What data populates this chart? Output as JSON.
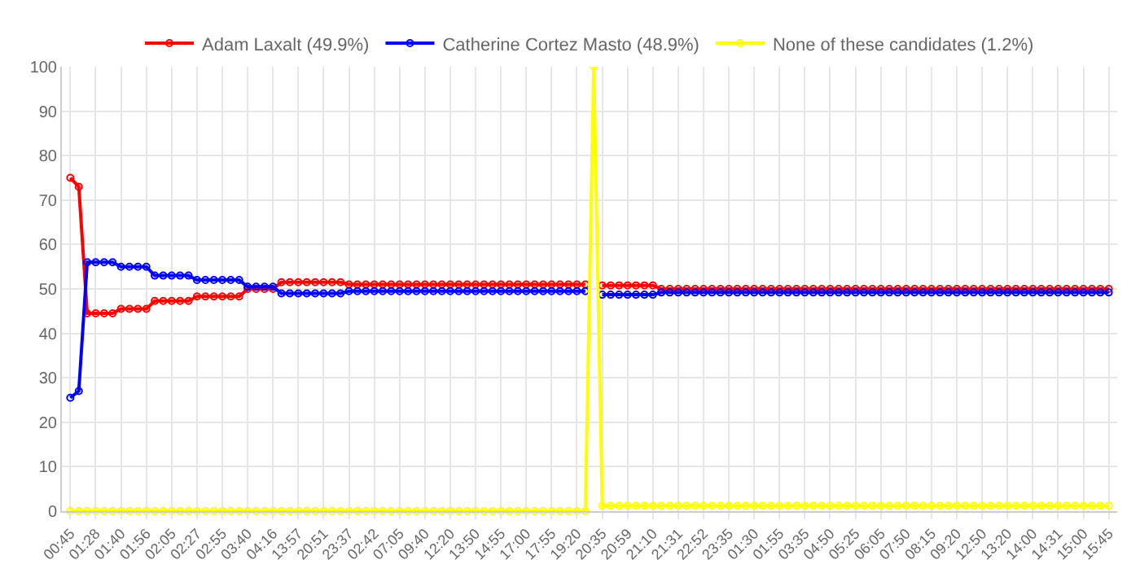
{
  "chart_data": {
    "type": "line",
    "categories": [
      "00:45",
      null,
      null,
      "01:28",
      null,
      null,
      "01:40",
      null,
      null,
      "01:56",
      null,
      null,
      "02:05",
      null,
      null,
      "02:27",
      null,
      null,
      "02:55",
      null,
      null,
      "03:40",
      null,
      null,
      "04:16",
      null,
      null,
      "13:57",
      null,
      null,
      "20:51",
      null,
      null,
      "23:37",
      null,
      null,
      "02:42",
      null,
      null,
      "07:05",
      null,
      null,
      "09:40",
      null,
      null,
      "12:20",
      null,
      null,
      "13:50",
      null,
      null,
      "14:55",
      null,
      null,
      "17:00",
      null,
      null,
      "17:55",
      null,
      null,
      "19:20",
      null,
      null,
      "20:35",
      null,
      null,
      "20:59",
      null,
      null,
      "21:10",
      null,
      null,
      "21:31",
      null,
      null,
      "22:52",
      null,
      null,
      "23:35",
      null,
      null,
      "01:30",
      null,
      null,
      "01:55",
      null,
      null,
      "03:35",
      null,
      null,
      "04:50",
      null,
      null,
      "05:25",
      null,
      null,
      "06:05",
      null,
      null,
      "07:50",
      null,
      null,
      "08:15",
      null,
      null,
      "09:20",
      null,
      null,
      "12:50",
      null,
      null,
      "13:20",
      null,
      null,
      "14:00",
      null,
      null,
      "14:31",
      null,
      null,
      "15:00",
      null,
      null,
      "15:45"
    ],
    "series": [
      {
        "name": "Adam Laxalt (49.9%)",
        "color": "#ff0000",
        "values": [
          75,
          73,
          44.5,
          44.5,
          44.5,
          44.5,
          45.5,
          45.5,
          45.5,
          45.5,
          47.3,
          47.3,
          47.3,
          47.3,
          47.3,
          48.3,
          48.3,
          48.3,
          48.3,
          48.3,
          48.3,
          50,
          50,
          50,
          50,
          51.5,
          51.5,
          51.5,
          51.5,
          51.5,
          51.5,
          51.5,
          51.5,
          51,
          51,
          51,
          51,
          51,
          51,
          51,
          51,
          51,
          51,
          51,
          51,
          51,
          51,
          51,
          51,
          51,
          51,
          51,
          51,
          51,
          51,
          51,
          51,
          51,
          51,
          51,
          51,
          51,
          null,
          50.8,
          50.8,
          50.8,
          50.8,
          50.8,
          50.8,
          50.8,
          50,
          50,
          50,
          50,
          50,
          50,
          50,
          50,
          50,
          50,
          50,
          50,
          50,
          50,
          50,
          50,
          50,
          50,
          50,
          50,
          50,
          50,
          50,
          50,
          50,
          50,
          50,
          50,
          50,
          50,
          50,
          50,
          50,
          50,
          50,
          50,
          50,
          50,
          50,
          50,
          50,
          50,
          50,
          50,
          50,
          50,
          50,
          50,
          50,
          50,
          50,
          50,
          50,
          50
        ]
      },
      {
        "name": "Catherine Cortez Masto (48.9%)",
        "color": "#0000ff",
        "values": [
          25.5,
          27,
          56,
          56,
          56,
          56,
          55,
          55,
          55,
          55,
          53,
          53,
          53,
          53,
          53,
          52,
          52,
          52,
          52,
          52,
          52,
          50.5,
          50.5,
          50.5,
          50.5,
          49,
          49,
          49,
          49,
          49,
          49,
          49,
          49,
          49.5,
          49.5,
          49.5,
          49.5,
          49.5,
          49.5,
          49.5,
          49.5,
          49.5,
          49.5,
          49.5,
          49.5,
          49.5,
          49.5,
          49.5,
          49.5,
          49.5,
          49.5,
          49.5,
          49.5,
          49.5,
          49.5,
          49.5,
          49.5,
          49.5,
          49.5,
          49.5,
          49.5,
          49.5,
          null,
          48.7,
          48.7,
          48.7,
          48.7,
          48.7,
          48.7,
          48.7,
          49.2,
          49.2,
          49.2,
          49.2,
          49.2,
          49.2,
          49.2,
          49.2,
          49.2,
          49.2,
          49.2,
          49.2,
          49.2,
          49.2,
          49.2,
          49.2,
          49.2,
          49.2,
          49.2,
          49.2,
          49.2,
          49.2,
          49.2,
          49.2,
          49.2,
          49.2,
          49.2,
          49.2,
          49.2,
          49.2,
          49.2,
          49.2,
          49.2,
          49.2,
          49.2,
          49.2,
          49.2,
          49.2,
          49.2,
          49.2,
          49.2,
          49.2,
          49.2,
          49.2,
          49.2,
          49.2,
          49.2,
          49.2,
          49.2,
          49.2,
          49.2,
          49.2,
          49.2,
          49.2
        ]
      },
      {
        "name": "None of these candidates (1.2%)",
        "color": "#ffff00",
        "values": [
          0,
          0,
          0,
          0,
          0,
          0,
          0,
          0,
          0,
          0,
          0,
          0,
          0,
          0,
          0,
          0,
          0,
          0,
          0,
          0,
          0,
          0,
          0,
          0,
          0,
          0,
          0,
          0,
          0,
          0,
          0,
          0,
          0,
          0,
          0,
          0,
          0,
          0,
          0,
          0,
          0,
          0,
          0,
          0,
          0,
          0,
          0,
          0,
          0,
          0,
          0,
          0,
          0,
          0,
          0,
          0,
          0,
          0,
          0,
          0,
          0,
          0,
          100,
          1.2,
          1.2,
          1.2,
          1.2,
          1.2,
          1.2,
          1.2,
          1.2,
          1.2,
          1.2,
          1.2,
          1.2,
          1.2,
          1.2,
          1.2,
          1.2,
          1.2,
          1.2,
          1.2,
          1.2,
          1.2,
          1.2,
          1.2,
          1.2,
          1.2,
          1.2,
          1.2,
          1.2,
          1.2,
          1.2,
          1.2,
          1.2,
          1.2,
          1.2,
          1.2,
          1.2,
          1.2,
          1.2,
          1.2,
          1.2,
          1.2,
          1.2,
          1.2,
          1.2,
          1.2,
          1.2,
          1.2,
          1.2,
          1.2,
          1.2,
          1.2,
          1.2,
          1.2,
          1.2,
          1.2,
          1.2,
          1.2,
          1.2,
          1.2,
          1.2,
          1.2
        ]
      }
    ],
    "ylim": [
      0,
      100
    ],
    "yticks": [
      0,
      10,
      20,
      30,
      40,
      50,
      60,
      70,
      80,
      90,
      100
    ],
    "grid": true,
    "legend": "top",
    "marker": "circle",
    "line_style": "solid"
  }
}
